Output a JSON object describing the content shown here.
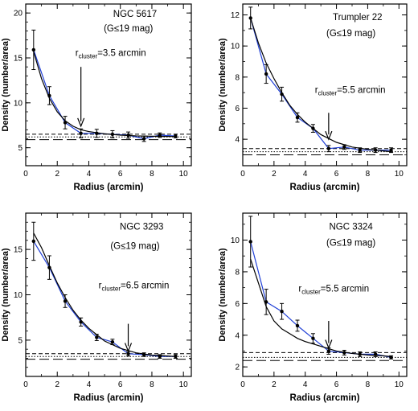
{
  "chart_data": [
    {
      "type": "line",
      "annotation": {
        "name": "NGC 5617",
        "mag": "(G≤19 mag)",
        "r_prefix": "r",
        "r_sub": "cluster",
        "r_value": "=3.5 arcmin",
        "arrow_x": 3.5,
        "arrow_y_top": 14,
        "arrow_y_tip": 7.4
      },
      "xlabel": "Radius (arcmin)",
      "ylabel": "Density (number/area)",
      "xlim": [
        0,
        10.5
      ],
      "ylim": [
        3,
        21
      ],
      "xticks": [
        0,
        2,
        4,
        6,
        8,
        10
      ],
      "yticks": [
        5,
        10,
        15,
        20
      ],
      "series": [
        {
          "kind": "observed",
          "color": "#1f3fd6",
          "x": [
            0.5,
            1.5,
            2.5,
            3.5,
            4.5,
            5.5,
            6.5,
            7.5,
            8.5,
            9.5
          ],
          "y": [
            15.9,
            10.8,
            7.8,
            6.6,
            6.6,
            6.5,
            6.4,
            6.0,
            6.4,
            6.3
          ],
          "err": [
            2.2,
            1.0,
            0.7,
            0.5,
            0.45,
            0.4,
            0.35,
            0.3,
            0.25,
            0.2
          ]
        },
        {
          "kind": "model",
          "color": "#000000",
          "x": [
            0.5,
            1,
            1.5,
            2,
            2.5,
            3,
            3.5,
            4,
            5,
            6,
            7,
            8,
            9,
            9.5
          ],
          "y": [
            15.7,
            12.7,
            10.5,
            9.0,
            8.0,
            7.4,
            7.0,
            6.8,
            6.55,
            6.4,
            6.32,
            6.28,
            6.26,
            6.25
          ]
        }
      ],
      "hlines": [
        {
          "y": 6.5,
          "style": "short-dash"
        },
        {
          "y": 6.2,
          "style": "dotted"
        },
        {
          "y": 5.9,
          "style": "long-dash"
        }
      ]
    },
    {
      "type": "line",
      "annotation": {
        "name": "Trumpler 22",
        "mag": "(G≤19 mag)",
        "r_prefix": "r",
        "r_sub": "cluster",
        "r_value": "=5.5 arcmin",
        "arrow_x": 5.5,
        "arrow_y_top": 5.7,
        "arrow_y_tip": 4.0
      },
      "xlabel": "Radius (arcmin)",
      "ylabel": "Density (number/area)",
      "xlim": [
        0,
        10.5
      ],
      "ylim": [
        2.3,
        12.7
      ],
      "xticks": [
        0,
        2,
        4,
        6,
        8,
        10
      ],
      "yticks": [
        4,
        6,
        8,
        10,
        12
      ],
      "series": [
        {
          "kind": "observed",
          "color": "#1f3fd6",
          "x": [
            0.5,
            1.5,
            2.5,
            3.5,
            4.5,
            5.5,
            6.5,
            7.5,
            8.5,
            9.5
          ],
          "y": [
            11.8,
            8.2,
            6.9,
            5.4,
            4.7,
            3.4,
            3.5,
            3.3,
            3.3,
            3.3
          ],
          "err": [
            0.7,
            0.6,
            0.45,
            0.3,
            0.25,
            0.2,
            0.15,
            0.15,
            0.15,
            0.15
          ]
        },
        {
          "kind": "model",
          "color": "#000000",
          "x": [
            0.5,
            1,
            1.5,
            2,
            2.5,
            3,
            3.5,
            4,
            5,
            6,
            7,
            8,
            9,
            9.5
          ],
          "y": [
            11.8,
            10.2,
            8.9,
            7.9,
            7.0,
            6.2,
            5.6,
            5.1,
            4.3,
            3.8,
            3.5,
            3.35,
            3.25,
            3.2
          ]
        }
      ],
      "hlines": [
        {
          "y": 3.4,
          "style": "short-dash"
        },
        {
          "y": 3.2,
          "style": "dotted"
        },
        {
          "y": 3.0,
          "style": "long-dash"
        }
      ]
    },
    {
      "type": "line",
      "annotation": {
        "name": "NGC 3293",
        "mag": "(G≤19 mag)",
        "r_prefix": "r",
        "r_sub": "cluster",
        "r_value": "=6.5 arcmin",
        "arrow_x": 6.5,
        "arrow_y_top": 6.8,
        "arrow_y_tip": 3.8
      },
      "xlabel": "Radius (arcmin)",
      "ylabel": "Density (number/area)",
      "xlim": [
        0,
        10.5
      ],
      "ylim": [
        1,
        19
      ],
      "xticks": [
        0,
        2,
        4,
        6,
        8,
        10
      ],
      "yticks": [
        5,
        10,
        15
      ],
      "series": [
        {
          "kind": "observed",
          "color": "#1f3fd6",
          "x": [
            0.5,
            1.5,
            2.5,
            3.5,
            4.5,
            5.5,
            6.5,
            7.5,
            8.5,
            9.5
          ],
          "y": [
            15.9,
            13.0,
            9.3,
            7.0,
            5.3,
            4.8,
            3.5,
            3.4,
            3.2,
            3.2
          ],
          "err": [
            2.1,
            1.3,
            0.7,
            0.45,
            0.35,
            0.3,
            0.25,
            0.2,
            0.2,
            0.2
          ]
        },
        {
          "kind": "model",
          "color": "#000000",
          "x": [
            0.5,
            1,
            1.5,
            2,
            2.5,
            3,
            3.5,
            4,
            5,
            6,
            7,
            8,
            9,
            9.5
          ],
          "y": [
            16.8,
            15.2,
            13.2,
            11.3,
            9.7,
            8.3,
            7.2,
            6.3,
            4.9,
            4.1,
            3.6,
            3.35,
            3.25,
            3.2
          ]
        }
      ],
      "hlines": [
        {
          "y": 3.5,
          "style": "short-dash"
        },
        {
          "y": 3.2,
          "style": "dotted"
        },
        {
          "y": 2.9,
          "style": "long-dash"
        }
      ]
    },
    {
      "type": "line",
      "annotation": {
        "name": "NGC 3324",
        "mag": "(G≤19 mag)",
        "r_prefix": "r",
        "r_sub": "cluster",
        "r_value": "=5.5 arcmin",
        "arrow_x": 5.5,
        "arrow_y_top": 4.9,
        "arrow_y_tip": 3.2
      },
      "xlabel": "Radius (arcmin)",
      "ylabel": "Density (number/area)",
      "xlim": [
        0,
        10.5
      ],
      "ylim": [
        1.4,
        11.7
      ],
      "xticks": [
        0,
        2,
        4,
        6,
        8,
        10
      ],
      "yticks": [
        2,
        4,
        6,
        8,
        10
      ],
      "series": [
        {
          "kind": "observed",
          "color": "#1f3fd6",
          "x": [
            0.5,
            1.5,
            2.5,
            3.5,
            4.5,
            5.5,
            6.5,
            7.5,
            8.5,
            9.5
          ],
          "y": [
            9.9,
            6.1,
            5.5,
            4.6,
            3.8,
            3.0,
            2.9,
            2.8,
            2.8,
            2.6
          ],
          "err": [
            1.6,
            0.8,
            0.5,
            0.35,
            0.3,
            0.2,
            0.15,
            0.15,
            0.15,
            0.1
          ]
        },
        {
          "kind": "model",
          "color": "#000000",
          "x": [
            0.5,
            1,
            1.5,
            2,
            2.5,
            3,
            3.5,
            4,
            5,
            6,
            7,
            8,
            9,
            9.5
          ],
          "y": [
            8.8,
            7.3,
            5.8,
            4.9,
            4.4,
            4.1,
            3.8,
            3.6,
            3.3,
            3.0,
            2.85,
            2.75,
            2.7,
            2.65
          ]
        }
      ],
      "hlines": [
        {
          "y": 2.9,
          "style": "short-dash"
        },
        {
          "y": 2.6,
          "style": "dotted"
        },
        {
          "y": 2.4,
          "style": "long-dash"
        }
      ]
    }
  ]
}
